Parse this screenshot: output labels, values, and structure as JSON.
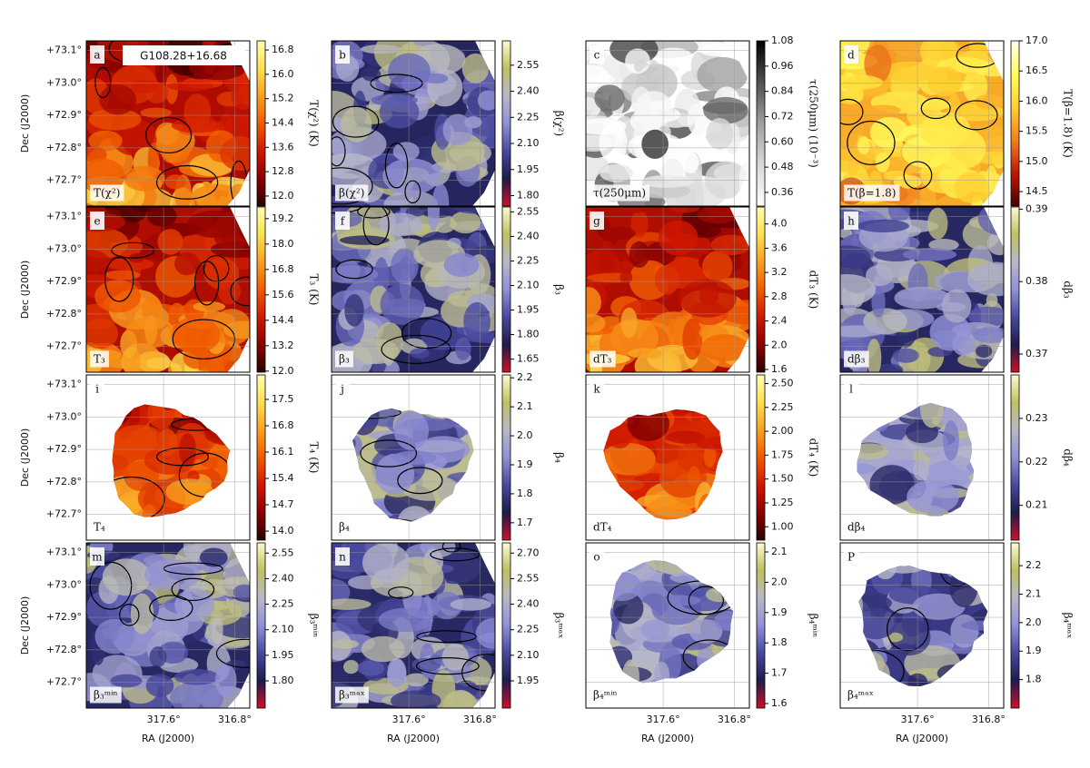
{
  "figure_title": "G108.28+16.68",
  "dec_axis": {
    "label": "Dec (J2000)",
    "lim": [
      72.62,
      73.13
    ],
    "ticks": [
      {
        "value": 73.1,
        "label": "+73.1°"
      },
      {
        "value": 73.0,
        "label": "+73.0°"
      },
      {
        "value": 72.9,
        "label": "+72.9°"
      },
      {
        "value": 72.8,
        "label": "+72.8°"
      },
      {
        "value": 72.7,
        "label": "+72.7°"
      }
    ]
  },
  "ra_axis": {
    "label": "RA (J2000)",
    "lim": [
      318.47,
      316.63
    ],
    "ticks": [
      {
        "value": 317.6,
        "label": "317.6°"
      },
      {
        "value": 316.8,
        "label": "316.8°"
      }
    ]
  },
  "panels": [
    {
      "letter": "a",
      "name": "T(χ²)",
      "colormap": "heat",
      "extent": "full",
      "colorbar": {
        "label": "T(χ²) (K)",
        "lim": [
          11.67,
          17.1
        ],
        "ticks": [
          16.8,
          {
            "value": 16.0,
            "label": "16.0"
          },
          15.2,
          14.4,
          13.6,
          12.8,
          {
            "value": 12.0,
            "label": "12.0"
          }
        ]
      }
    },
    {
      "letter": "b",
      "name": "β(χ²)",
      "colormap": "blue-yellow",
      "extent": "full",
      "colorbar": {
        "label": "β(χ²)",
        "lim": [
          1.74,
          2.69
        ],
        "ticks": [
          2.55,
          {
            "value": 2.4,
            "label": "2.40"
          },
          2.25,
          {
            "value": 2.1,
            "label": "2.10"
          },
          1.95,
          {
            "value": 1.8,
            "label": "1.80"
          }
        ]
      }
    },
    {
      "letter": "c",
      "name": "τ(250μm)",
      "colormap": "gray",
      "extent": "full",
      "colorbar": {
        "label": "τ(250μm) (10⁻³)",
        "lim": [
          0.295,
          1.08
        ],
        "ticks": [
          1.08,
          0.96,
          0.84,
          0.72,
          {
            "value": 0.6,
            "label": "0.60"
          },
          0.48,
          0.36
        ]
      }
    },
    {
      "letter": "d",
      "name": "T(β=1.8)",
      "colormap": "yellow",
      "extent": "full",
      "colorbar": {
        "label": "T(β=1.8) (K)",
        "lim": [
          14.26,
          17.0
        ],
        "ticks": [
          {
            "value": 17.0,
            "label": "17.0"
          },
          16.5,
          {
            "value": 16.0,
            "label": "16.0"
          },
          15.5,
          {
            "value": 15.0,
            "label": "15.0"
          },
          14.5
        ]
      }
    },
    {
      "letter": "e",
      "name": "T₃",
      "colormap": "heat",
      "extent": "full",
      "colorbar": {
        "label": "T₃ (K)",
        "lim": [
          11.95,
          19.75
        ],
        "ticks": [
          19.2,
          {
            "value": 18.0,
            "label": "18.0"
          },
          16.8,
          15.6,
          14.4,
          13.2,
          {
            "value": 12.0,
            "label": "12.0"
          }
        ]
      }
    },
    {
      "letter": "f",
      "name": "β₃",
      "colormap": "blue-yellow",
      "extent": "full",
      "colorbar": {
        "label": "β₃",
        "lim": [
          1.57,
          2.58
        ],
        "ticks": [
          2.55,
          {
            "value": 2.4,
            "label": "2.40"
          },
          2.25,
          {
            "value": 2.1,
            "label": "2.10"
          },
          1.95,
          {
            "value": 1.8,
            "label": "1.80"
          },
          1.65
        ]
      }
    },
    {
      "letter": "g",
      "name": "dT₃",
      "colormap": "heat",
      "extent": "full",
      "colorbar": {
        "label": "dT₃ (K)",
        "lim": [
          1.555,
          4.28
        ],
        "ticks": [
          {
            "value": 4.0,
            "label": "4.0"
          },
          3.6,
          3.2,
          2.8,
          2.4,
          {
            "value": 2.0,
            "label": "2.0"
          },
          1.6
        ]
      }
    },
    {
      "letter": "h",
      "name": "dβ₃",
      "colormap": "blue-yellow",
      "extent": "full",
      "colorbar": {
        "label": "dβ₃",
        "lim": [
          0.3675,
          0.3903
        ],
        "ticks": [
          0.39,
          0.38,
          0.37
        ]
      }
    },
    {
      "letter": "i",
      "name": "T₄",
      "colormap": "heat",
      "extent": "compact",
      "colorbar": {
        "label": "T₄ (K)",
        "lim": [
          13.76,
          18.15
        ],
        "ticks": [
          17.5,
          16.8,
          16.1,
          15.4,
          14.7,
          {
            "value": 14.0,
            "label": "14.0"
          }
        ]
      }
    },
    {
      "letter": "j",
      "name": "β₄",
      "colormap": "blue-yellow",
      "extent": "compact",
      "colorbar": {
        "label": "β₄",
        "lim": [
          1.64,
          2.21
        ],
        "ticks": [
          2.2,
          2.1,
          {
            "value": 2.0,
            "label": "2.0"
          },
          1.9,
          1.8,
          1.7
        ]
      }
    },
    {
      "letter": "k",
      "name": "dT₄",
      "colormap": "heat",
      "extent": "compact",
      "colorbar": {
        "label": "dT₄ (K)",
        "lim": [
          0.86,
          2.59
        ],
        "ticks": [
          {
            "value": 2.5,
            "label": "2.50"
          },
          2.25,
          {
            "value": 2.0,
            "label": "2.00"
          },
          1.75,
          {
            "value": 1.5,
            "label": "1.50"
          },
          1.25,
          {
            "value": 1.0,
            "label": "1.00"
          }
        ]
      }
    },
    {
      "letter": "l",
      "name": "dβ₄",
      "colormap": "blue-yellow",
      "extent": "compact",
      "colorbar": {
        "label": "dβ₄",
        "lim": [
          0.202,
          0.24
        ],
        "ticks": [
          0.23,
          0.22,
          0.21
        ]
      }
    },
    {
      "letter": "m",
      "name": "β₃ᵐⁱⁿ",
      "colormap": "blue-yellow",
      "extent": "full",
      "colorbar": {
        "label": "β₃ᵐⁱⁿ",
        "lim": [
          1.64,
          2.61
        ],
        "ticks": [
          2.55,
          {
            "value": 2.4,
            "label": "2.40"
          },
          2.25,
          {
            "value": 2.1,
            "label": "2.10"
          },
          1.95,
          {
            "value": 1.8,
            "label": "1.80"
          }
        ]
      }
    },
    {
      "letter": "n",
      "name": "β₃ᵐᵃˣ",
      "colormap": "blue-yellow",
      "extent": "full",
      "colorbar": {
        "label": "β₃ᵐᵃˣ",
        "lim": [
          1.79,
          2.76
        ],
        "ticks": [
          {
            "value": 2.7,
            "label": "2.70"
          },
          2.55,
          {
            "value": 2.4,
            "label": "2.40"
          },
          2.25,
          {
            "value": 2.1,
            "label": "2.10"
          },
          1.95
        ]
      }
    },
    {
      "letter": "o",
      "name": "β₄ᵐⁱⁿ",
      "colormap": "blue-yellow",
      "extent": "compact",
      "colorbar": {
        "label": "β₄ᵐⁱⁿ",
        "lim": [
          1.585,
          2.13
        ],
        "ticks": [
          2.1,
          {
            "value": 2.0,
            "label": "2.0"
          },
          1.9,
          1.8,
          1.7,
          1.6
        ]
      }
    },
    {
      "letter": "P",
      "name": "β₄ᵐᵃˣ",
      "colormap": "blue-yellow",
      "extent": "compact",
      "colorbar": {
        "label": "β₄ᵐᵃˣ",
        "lim": [
          1.7,
          2.28
        ],
        "ticks": [
          2.2,
          2.1,
          {
            "value": 2.0,
            "label": "2.0"
          },
          1.9,
          1.8
        ]
      }
    }
  ]
}
